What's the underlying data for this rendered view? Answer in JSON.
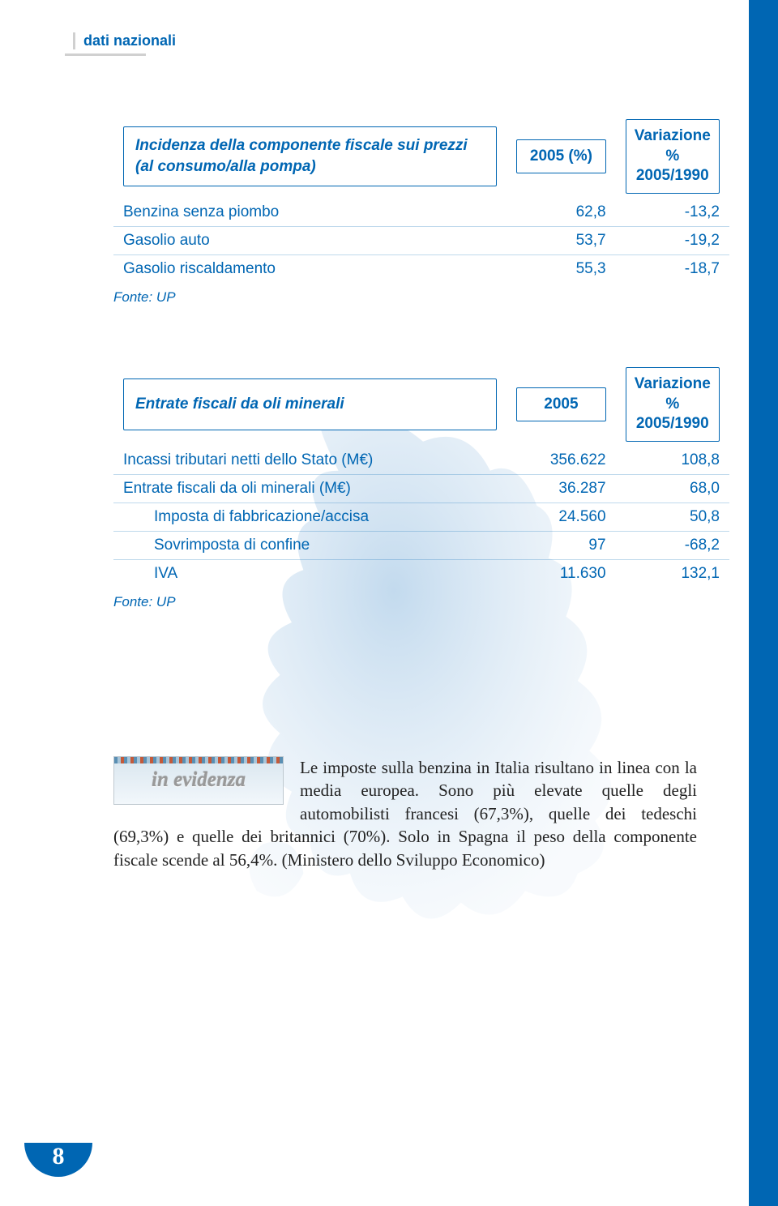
{
  "page": {
    "section_label": "dati nazionali",
    "page_number": "8",
    "accent_color": "#0066b3",
    "sidebar_color": "#0066b3"
  },
  "table1": {
    "title": "Incidenza della componente fiscale sui prezzi (al consumo/alla pompa)",
    "col1": "2005 (%)",
    "col2": "Variazione % 2005/1990",
    "rows": [
      {
        "label": "Benzina senza piombo",
        "v1": "62,8",
        "v2": "-13,2",
        "indent": false
      },
      {
        "label": "Gasolio auto",
        "v1": "53,7",
        "v2": "-19,2",
        "indent": false
      },
      {
        "label": "Gasolio riscaldamento",
        "v1": "55,3",
        "v2": "-18,7",
        "indent": false
      }
    ],
    "source": "Fonte: UP"
  },
  "table2": {
    "title": "Entrate fiscali da oli minerali",
    "col1": "2005",
    "col2": "Variazione % 2005/1990",
    "rows": [
      {
        "label": "Incassi tributari netti dello Stato (M€)",
        "v1": "356.622",
        "v2": "108,8",
        "indent": false
      },
      {
        "label": "Entrate fiscali da oli minerali (M€)",
        "v1": "36.287",
        "v2": "68,0",
        "indent": false
      },
      {
        "label": "Imposta di fabbricazione/accisa",
        "v1": "24.560",
        "v2": "50,8",
        "indent": true
      },
      {
        "label": "Sovrimposta di confine",
        "v1": "97",
        "v2": "-68,2",
        "indent": true
      },
      {
        "label": "IVA",
        "v1": "11.630",
        "v2": "132,1",
        "indent": true
      }
    ],
    "source": "Fonte: UP"
  },
  "evidenza": {
    "badge": "in evidenza",
    "text": "Le imposte sulla benzina in Italia risultano in linea con la media europea. Sono più elevate quelle degli automobilisti francesi (67,3%), quelle dei tedeschi (69,3%) e quelle dei britannici (70%). Solo in Spagna il peso della componente fiscale scende al 56,4%. (Ministero dello Sviluppo Economico)"
  }
}
